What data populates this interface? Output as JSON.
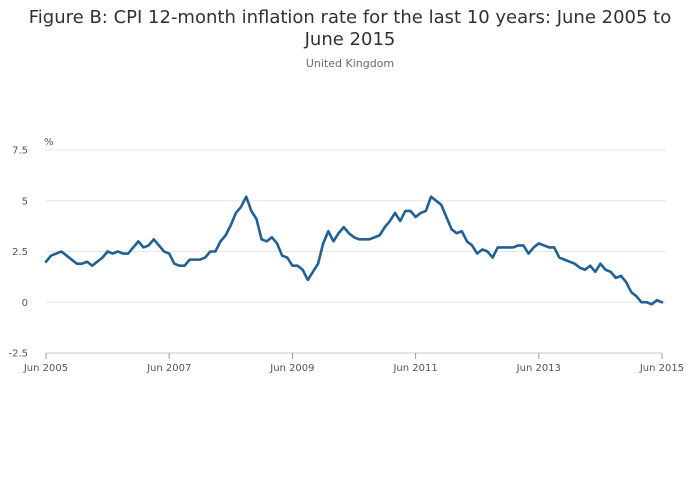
{
  "chart_data": {
    "type": "line",
    "title": "Figure B: CPI 12-month inflation rate for the last 10 years: June 2005 to June 2015",
    "subtitle": "United Kingdom",
    "ylabel": "%",
    "ylim": [
      -2.5,
      7.5
    ],
    "yticks": [
      {
        "value": 7.5,
        "label": "7.5"
      },
      {
        "value": 5,
        "label": "5"
      },
      {
        "value": 2.5,
        "label": "2.5"
      },
      {
        "value": 0,
        "label": "0"
      },
      {
        "value": -2.5,
        "label": "-2.5"
      }
    ],
    "xticks": [
      {
        "month_index": 0,
        "label": "Jun 2005"
      },
      {
        "month_index": 24,
        "label": "Jun 2007"
      },
      {
        "month_index": 48,
        "label": "Jun 2009"
      },
      {
        "month_index": 72,
        "label": "Jun 2011"
      },
      {
        "month_index": 96,
        "label": "Jun 2013"
      },
      {
        "month_index": 120,
        "label": "Jun 2015"
      }
    ],
    "grid": true,
    "line_color": "#206095",
    "series": [
      {
        "start": "2005-06",
        "frequency": "monthly",
        "values": [
          2.0,
          2.3,
          2.4,
          2.5,
          2.3,
          2.1,
          1.9,
          1.9,
          2.0,
          1.8,
          2.0,
          2.2,
          2.5,
          2.4,
          2.5,
          2.4,
          2.4,
          2.7,
          3.0,
          2.7,
          2.8,
          3.1,
          2.8,
          2.5,
          2.4,
          1.9,
          1.8,
          1.8,
          2.1,
          2.1,
          2.1,
          2.2,
          2.5,
          2.5,
          3.0,
          3.3,
          3.8,
          4.4,
          4.7,
          5.2,
          4.5,
          4.1,
          3.1,
          3.0,
          3.2,
          2.9,
          2.3,
          2.2,
          1.8,
          1.8,
          1.6,
          1.1,
          1.5,
          1.9,
          2.9,
          3.5,
          3.0,
          3.4,
          3.7,
          3.4,
          3.2,
          3.1,
          3.1,
          3.1,
          3.2,
          3.3,
          3.7,
          4.0,
          4.4,
          4.0,
          4.5,
          4.5,
          4.2,
          4.4,
          4.5,
          5.2,
          5.0,
          4.8,
          4.2,
          3.6,
          3.4,
          3.5,
          3.0,
          2.8,
          2.4,
          2.6,
          2.5,
          2.2,
          2.7,
          2.7,
          2.7,
          2.7,
          2.8,
          2.8,
          2.4,
          2.7,
          2.9,
          2.8,
          2.7,
          2.7,
          2.2,
          2.1,
          2.0,
          1.9,
          1.7,
          1.6,
          1.8,
          1.5,
          1.9,
          1.6,
          1.5,
          1.2,
          1.3,
          1.0,
          0.5,
          0.3,
          0.0,
          0.0,
          -0.1,
          0.1,
          0.0
        ]
      }
    ]
  }
}
